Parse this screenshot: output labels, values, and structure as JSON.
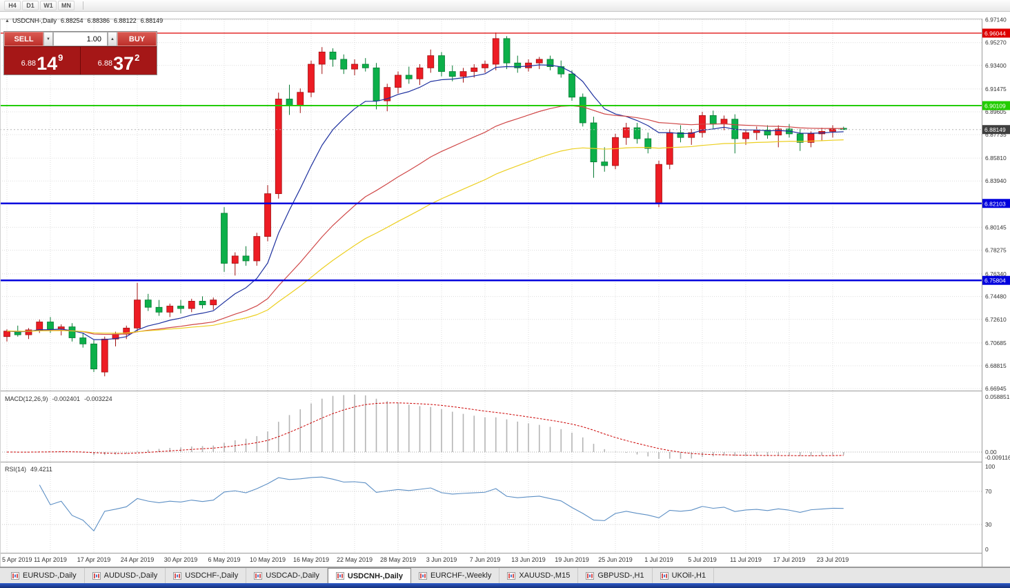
{
  "toolbar": {
    "timeframes": [
      "H4",
      "D1",
      "W1",
      "MN"
    ]
  },
  "chart_header": {
    "collapse_icon": "▲",
    "symbol": "USDCNH-,Daily",
    "open": "6.88254",
    "high": "6.88386",
    "low": "6.88122",
    "close": "6.88149"
  },
  "trade_panel": {
    "sell_label": "SELL",
    "buy_label": "BUY",
    "volume": "1.00",
    "icons": {
      "volume_down": "▼",
      "volume_up": "▲"
    },
    "sell_price": {
      "prefix": "6.88",
      "big": "14",
      "sup": "9"
    },
    "buy_price": {
      "prefix": "6.88",
      "big": "37",
      "sup": "2"
    }
  },
  "chart_data": {
    "type": "candlestick",
    "title": "USDCNH-,Daily",
    "ylim": [
      6.66945,
      6.9714
    ],
    "grid": true,
    "colors": {
      "bull": "#ed1c24",
      "bull_edge": "#a01010",
      "bear": "#0cb04a",
      "bear_edge": "#077a33"
    },
    "candles": [
      [
        6.712,
        6.718,
        6.708,
        6.7165
      ],
      [
        6.7165,
        6.721,
        6.712,
        6.7135
      ],
      [
        6.7135,
        6.719,
        6.71,
        6.7175
      ],
      [
        6.7175,
        6.726,
        6.715,
        6.724
      ],
      [
        6.724,
        6.728,
        6.715,
        6.718
      ],
      [
        6.718,
        6.722,
        6.713,
        6.72
      ],
      [
        6.72,
        6.723,
        6.708,
        6.711
      ],
      [
        6.711,
        6.715,
        6.703,
        6.706
      ],
      [
        6.706,
        6.709,
        6.683,
        6.6855
      ],
      [
        6.683,
        6.712,
        6.6795,
        6.71
      ],
      [
        6.71,
        6.716,
        6.704,
        6.714
      ],
      [
        6.714,
        6.721,
        6.71,
        6.719
      ],
      [
        6.719,
        6.756,
        6.716,
        6.742
      ],
      [
        6.742,
        6.747,
        6.733,
        6.736
      ],
      [
        6.736,
        6.742,
        6.729,
        6.732
      ],
      [
        6.732,
        6.739,
        6.728,
        6.737
      ],
      [
        6.737,
        6.742,
        6.731,
        6.735
      ],
      [
        6.735,
        6.743,
        6.732,
        6.741
      ],
      [
        6.741,
        6.745,
        6.735,
        6.738
      ],
      [
        6.738,
        6.744,
        6.734,
        6.742
      ],
      [
        6.813,
        6.818,
        6.765,
        6.772
      ],
      [
        6.772,
        6.781,
        6.762,
        6.778
      ],
      [
        6.778,
        6.786,
        6.77,
        6.774
      ],
      [
        6.774,
        6.797,
        6.77,
        6.794
      ],
      [
        6.794,
        6.836,
        6.79,
        6.829
      ],
      [
        6.829,
        6.9117,
        6.825,
        6.9065
      ],
      [
        6.9065,
        6.9182,
        6.8935,
        6.901
      ],
      [
        6.901,
        6.9152,
        6.895,
        6.912
      ],
      [
        6.912,
        6.938,
        6.908,
        6.935
      ],
      [
        6.935,
        6.949,
        6.927,
        6.945
      ],
      [
        6.945,
        6.948,
        6.933,
        6.939
      ],
      [
        6.939,
        6.943,
        6.927,
        6.931
      ],
      [
        6.931,
        6.939,
        6.926,
        6.935
      ],
      [
        6.935,
        6.94,
        6.929,
        6.932
      ],
      [
        6.932,
        6.936,
        6.898,
        6.905
      ],
      [
        6.905,
        6.919,
        6.8965,
        6.916
      ],
      [
        6.916,
        6.929,
        6.911,
        6.926
      ],
      [
        6.926,
        6.933,
        6.919,
        6.923
      ],
      [
        6.923,
        6.935,
        6.918,
        6.932
      ],
      [
        6.932,
        6.947,
        6.928,
        6.942
      ],
      [
        6.942,
        6.945,
        6.925,
        6.929
      ],
      [
        6.929,
        6.934,
        6.921,
        6.925
      ],
      [
        6.925,
        6.932,
        6.92,
        6.929
      ],
      [
        6.929,
        6.935,
        6.924,
        6.932
      ],
      [
        6.932,
        6.938,
        6.928,
        6.935
      ],
      [
        6.935,
        6.9609,
        6.93,
        6.956
      ],
      [
        6.956,
        6.958,
        6.931,
        6.936
      ],
      [
        6.936,
        6.942,
        6.928,
        6.932
      ],
      [
        6.932,
        6.939,
        6.929,
        6.936
      ],
      [
        6.936,
        6.941,
        6.931,
        6.939
      ],
      [
        6.939,
        6.942,
        6.93,
        6.933
      ],
      [
        6.933,
        6.938,
        6.924,
        6.927
      ],
      [
        6.927,
        6.93,
        6.905,
        6.908
      ],
      [
        6.908,
        6.911,
        6.884,
        6.887
      ],
      [
        6.887,
        6.892,
        6.842,
        6.855
      ],
      [
        6.855,
        6.867,
        6.847,
        6.852
      ],
      [
        6.852,
        6.878,
        6.849,
        6.875
      ],
      [
        6.875,
        6.887,
        6.869,
        6.883
      ],
      [
        6.883,
        6.887,
        6.87,
        6.874
      ],
      [
        6.874,
        6.879,
        6.862,
        6.866
      ],
      [
        6.821,
        6.856,
        6.818,
        6.853
      ],
      [
        6.853,
        6.882,
        6.849,
        6.879
      ],
      [
        6.879,
        6.885,
        6.871,
        6.875
      ],
      [
        6.875,
        6.882,
        6.869,
        6.879
      ],
      [
        6.879,
        6.896,
        6.875,
        6.893
      ],
      [
        6.893,
        6.897,
        6.882,
        6.886
      ],
      [
        6.886,
        6.893,
        6.881,
        6.89
      ],
      [
        6.89,
        6.894,
        6.862,
        6.874
      ],
      [
        6.874,
        6.882,
        6.869,
        6.879
      ],
      [
        6.879,
        6.884,
        6.873,
        6.881
      ],
      [
        6.881,
        6.885,
        6.874,
        6.877
      ],
      [
        6.877,
        6.885,
        6.867,
        6.882
      ],
      [
        6.882,
        6.886,
        6.875,
        6.878
      ],
      [
        6.878,
        6.882,
        6.864,
        6.871
      ],
      [
        6.871,
        6.88,
        6.867,
        6.878
      ],
      [
        6.878,
        6.883,
        6.872,
        6.88
      ],
      [
        6.88,
        6.885,
        6.875,
        6.882
      ],
      [
        6.88254,
        6.88386,
        6.88122,
        6.88149
      ]
    ],
    "date_label_start": 0,
    "date_label_step": 4,
    "date_labels": [
      "5 Apr 2019",
      "11 Apr 2019",
      "17 Apr 2019",
      "24 Apr 2019",
      "30 Apr 2019",
      "6 May 2019",
      "10 May 2019",
      "16 May 2019",
      "22 May 2019",
      "28 May 2019",
      "3 Jun 2019",
      "7 Jun 2019",
      "13 Jun 2019",
      "19 Jun 2019",
      "25 Jun 2019",
      "1 Jul 2019",
      "5 Jul 2019",
      "11 Jul 2019",
      "17 Jul 2019",
      "23 Jul 2019"
    ],
    "price_axis": {
      "labels": [
        "6.97140",
        "6.95270",
        "6.93400",
        "6.91475",
        "6.89605",
        "6.87735",
        "6.85810",
        "6.83940",
        "6.80145",
        "6.78275",
        "6.76340",
        "6.74480",
        "6.72610",
        "6.70685",
        "6.68815",
        "6.66945"
      ]
    },
    "hlines": [
      {
        "price": 6.96044,
        "label": "6.96044",
        "color": "#dd0000",
        "width": 1.3
      },
      {
        "price": 6.90109,
        "label": "6.90109",
        "color": "#22cc00",
        "width": 2
      },
      {
        "price": 6.82103,
        "label": "6.82103",
        "color": "#0000dd",
        "width": 2.4
      },
      {
        "price": 6.75804,
        "label": "6.75804",
        "color": "#0000dd",
        "width": 2.4
      }
    ],
    "current_price": {
      "value": 6.88149,
      "label": "6.88149",
      "tag_color": "#3f3f3f"
    },
    "moving_averages": [
      {
        "name": "fast-ma",
        "period": 10,
        "color": "#1c2f9e"
      },
      {
        "name": "medium-ma",
        "period": 30,
        "color": "#cf4646"
      },
      {
        "name": "slow-ma",
        "period": 50,
        "color": "#eccf1f"
      }
    ],
    "macd": {
      "label": "MACD(12,26,9)",
      "value_main": "-0.002401",
      "value_signal": "-0.003224",
      "fast": 12,
      "slow": 26,
      "signal_period": 9,
      "axis_labels": [
        "0.058851",
        "0.00",
        "-0.009116"
      ],
      "histogram_color": "#b4b4b4",
      "signal_color": "#cc0000"
    },
    "rsi": {
      "label": "RSI(14)",
      "value": "49.4211",
      "period": 14,
      "levels": [
        70,
        30
      ],
      "axis_labels": [
        "100",
        "70",
        "30",
        "0"
      ],
      "line_color": "#5b8ec4"
    }
  },
  "tabs": {
    "items": [
      {
        "label": "EURUSD-,Daily",
        "active": false
      },
      {
        "label": "AUDUSD-,Daily",
        "active": false
      },
      {
        "label": "USDCHF-,Daily",
        "active": false
      },
      {
        "label": "USDCAD-,Daily",
        "active": false
      },
      {
        "label": "USDCNH-,Daily",
        "active": true
      },
      {
        "label": "EURCHF-,Weekly",
        "active": false
      },
      {
        "label": "XAUUSD-,M15",
        "active": false
      },
      {
        "label": "GBPUSD-,H1",
        "active": false
      },
      {
        "label": "UKOil-,H1",
        "active": false
      }
    ]
  }
}
